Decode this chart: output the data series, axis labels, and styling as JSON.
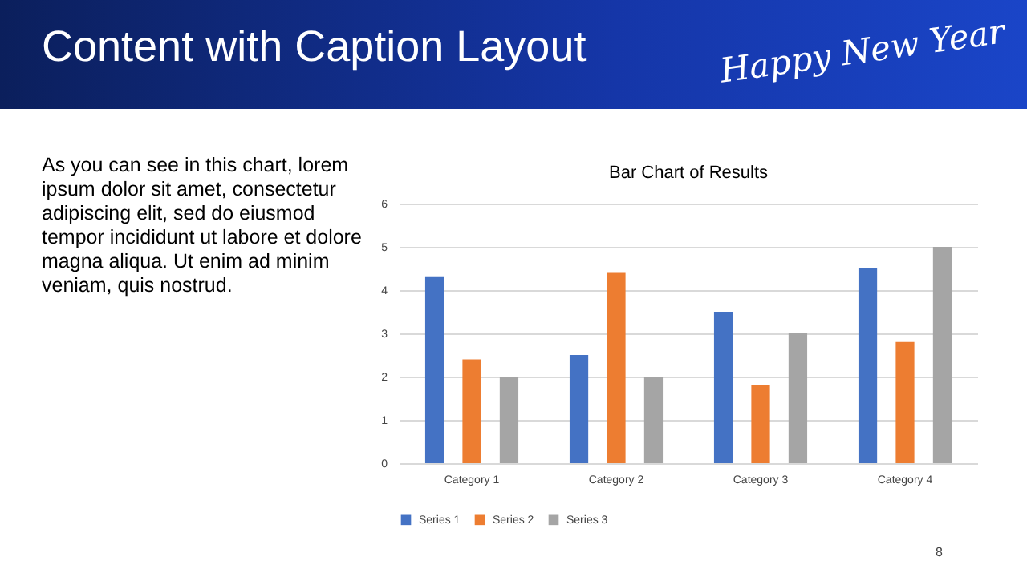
{
  "chart_data": {
    "type": "bar",
    "title": "Bar Chart of Results",
    "categories": [
      "Category 1",
      "Category 2",
      "Category 3",
      "Category 4"
    ],
    "series": [
      {
        "name": "Series 1",
        "color": "#4472c4",
        "values": [
          4.3,
          2.5,
          3.5,
          4.5
        ]
      },
      {
        "name": "Series 2",
        "color": "#ed7d31",
        "values": [
          2.4,
          4.4,
          1.8,
          2.8
        ]
      },
      {
        "name": "Series 3",
        "color": "#a5a5a5",
        "values": [
          2,
          2,
          3,
          5
        ]
      }
    ],
    "ylim": [
      0,
      6
    ],
    "yticks": [
      0,
      1,
      2,
      3,
      4,
      5,
      6
    ],
    "grid": "y",
    "legend": "bottom",
    "annotations": [
      "Content with Caption Layout",
      "As you can see in this chart, lorem ipsum dolor sit amet, consectetur adipiscing elit, sed do eiusmod tempor incididunt ut labore et dolore magna aliqua. Ut enim ad minim veniam, quis nostrud.",
      "Happy New Year",
      "8"
    ]
  }
}
